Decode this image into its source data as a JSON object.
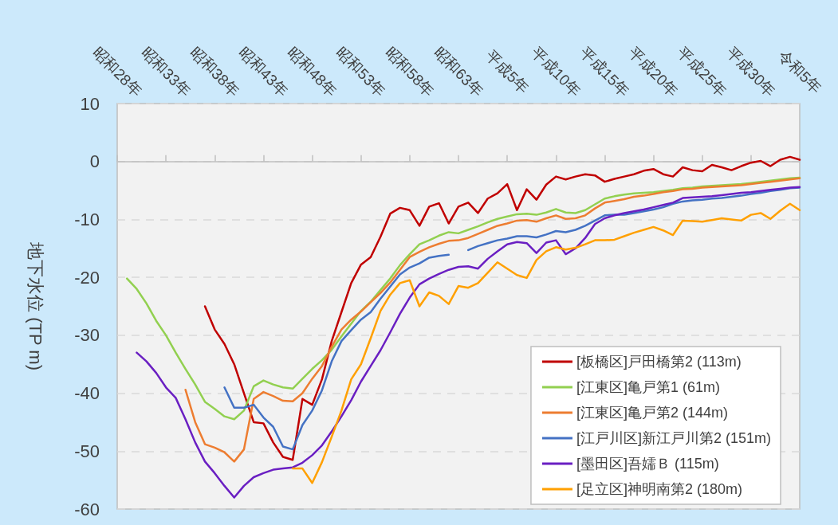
{
  "chart_data": {
    "type": "line",
    "ylabel": "地下水位 (TP m)",
    "ylim": [
      -60,
      10
    ],
    "yticks": [
      -60,
      -50,
      -40,
      -30,
      -20,
      -10,
      0,
      10
    ],
    "categories": [
      "昭和28年",
      null,
      null,
      null,
      null,
      "昭和33年",
      null,
      null,
      null,
      null,
      "昭和38年",
      null,
      null,
      null,
      null,
      "昭和43年",
      null,
      null,
      null,
      null,
      "昭和48年",
      null,
      null,
      null,
      null,
      "昭和53年",
      null,
      null,
      null,
      null,
      "昭和58年",
      null,
      null,
      null,
      null,
      "昭和63年",
      null,
      null,
      null,
      null,
      "平成5年",
      null,
      null,
      null,
      null,
      "平成10年",
      null,
      null,
      null,
      null,
      "平成15年",
      null,
      null,
      null,
      null,
      "平成20年",
      null,
      null,
      null,
      null,
      "平成25年",
      null,
      null,
      null,
      null,
      "平成30年",
      null,
      null,
      null,
      null,
      "令和5年"
    ],
    "grid": "y",
    "legend": "bottom right",
    "marker": "none",
    "line_style": "solid",
    "series": [
      {
        "name": "[板橋区]戸田橋第2 (113m)",
        "color": "#c00000",
        "values": [
          null,
          null,
          null,
          null,
          null,
          null,
          null,
          null,
          null,
          -25,
          -29,
          -31.5,
          -35,
          -40,
          -45,
          -45.2,
          -48.5,
          -51,
          -51.5,
          -41,
          -42,
          -37.6,
          -31,
          -26,
          -21,
          -17.8,
          -16.5,
          -13,
          -9,
          -8,
          -8.4,
          -11.1,
          -7.8,
          -7.2,
          -10.7,
          -7.8,
          -7.1,
          -8.9,
          -6.4,
          -5.5,
          -3.9,
          -8.4,
          -4.8,
          -6.6,
          -4,
          -2.6,
          -3.1,
          -2.6,
          -2.2,
          -2.4,
          -3.5,
          -3,
          -2.6,
          -2.2,
          -1.6,
          -1.3,
          -2.2,
          -2.6,
          -1,
          -1.5,
          -1.7,
          -0.6,
          -1,
          -1.5,
          -0.8,
          -0.2,
          0.1,
          -0.8,
          0.3,
          0.8,
          0.3
        ]
      },
      {
        "name": "[江東区]亀戸第1 (61m)",
        "color": "#92d050",
        "values": [
          null,
          -20.2,
          -22,
          -24.5,
          -27.5,
          -30,
          -33,
          -35.8,
          -38.5,
          -41.5,
          -42.7,
          -44,
          -44.5,
          -43,
          -38.8,
          -37.8,
          -38.5,
          -39,
          -39.2,
          -37.5,
          -35.8,
          -34.3,
          -32.5,
          -30.2,
          -28,
          -25.8,
          -24.2,
          -22.2,
          -20.2,
          -17.9,
          -16,
          -14.3,
          -13.6,
          -12.8,
          -12.2,
          -12.4,
          -11.8,
          -11.2,
          -10.5,
          -9.9,
          -9.5,
          -9.1,
          -9,
          -9.2,
          -8.8,
          -8.2,
          -8.8,
          -8.9,
          -8.4,
          -7.4,
          -6.4,
          -6,
          -5.7,
          -5.5,
          -5.4,
          -5.3,
          -5.1,
          -4.9,
          -4.6,
          -4.5,
          -4.3,
          -4.2,
          -4.1,
          -4,
          -3.9,
          -3.7,
          -3.5,
          -3.3,
          -3.1,
          -2.9,
          -2.8
        ]
      },
      {
        "name": "[江東区]亀戸第2 (144m)",
        "color": "#ed7d31",
        "values": [
          null,
          null,
          null,
          null,
          null,
          null,
          null,
          -39.4,
          -45,
          -48.8,
          -49.4,
          -50.2,
          -51.8,
          -49.7,
          -41,
          -39.8,
          -40.5,
          -41.3,
          -41.4,
          -40,
          -37.5,
          -35.3,
          -32,
          -29,
          -27.3,
          -25.9,
          -24.3,
          -22.7,
          -20.9,
          -18.7,
          -16.5,
          -15.6,
          -14.8,
          -14.2,
          -13.7,
          -13.6,
          -13.2,
          -12.5,
          -11.8,
          -11.1,
          -10.7,
          -10.2,
          -10.1,
          -10.4,
          -9.8,
          -9.3,
          -9.9,
          -9.8,
          -9.3,
          -8.1,
          -7.1,
          -6.8,
          -6.5,
          -6.1,
          -5.9,
          -5.6,
          -5.3,
          -5.1,
          -4.8,
          -4.7,
          -4.5,
          -4.4,
          -4.3,
          -4.2,
          -4.1,
          -3.9,
          -3.7,
          -3.5,
          -3.3,
          -3.1,
          -2.9
        ]
      },
      {
        "name": "[江戸川区]新江戸川第2 (151m)",
        "color": "#4472c4",
        "values": [
          null,
          null,
          null,
          null,
          null,
          null,
          null,
          null,
          null,
          null,
          null,
          -39,
          -42.5,
          -42.5,
          -42,
          -44.2,
          -45.8,
          -49.2,
          -49.7,
          -45.5,
          -43,
          -39.5,
          -34.5,
          -31,
          -29.1,
          -27.3,
          -26,
          -23.7,
          -21.6,
          -19.5,
          -18.3,
          -17.6,
          -16.6,
          -16.3,
          -16.1,
          null,
          -15.3,
          -14.6,
          -14.1,
          -13.6,
          -13.3,
          -12.9,
          -12.9,
          -13.1,
          -12.6,
          -12,
          -12.2,
          -11.8,
          -11.1,
          -10.2,
          -9.3,
          -9.2,
          -9.2,
          -8.9,
          -8.6,
          -8.3,
          -7.9,
          -7.3,
          -6.9,
          -6.7,
          -6.6,
          -6.4,
          -6.3,
          -6.1,
          -5.9,
          -5.6,
          -5.4,
          -5.1,
          -4.9,
          -4.6,
          -4.5
        ]
      },
      {
        "name": "[墨田区]吾嬬Ｂ (115m)",
        "color": "#6a1fc2",
        "values": [
          null,
          null,
          -33,
          -34.5,
          -36.5,
          -39,
          -40.8,
          -44.5,
          -48.5,
          -51.8,
          -53.8,
          -56,
          -58,
          -56,
          -54.5,
          -53.8,
          -53.2,
          -53,
          -52.8,
          -52,
          -50.7,
          -49,
          -46.6,
          -44,
          -41.2,
          -38,
          -35.3,
          -32.6,
          -29.5,
          -26.3,
          -23.5,
          -21.2,
          -20.2,
          -19.4,
          -18.7,
          -18.2,
          -18.1,
          -18.5,
          -16.8,
          -15.5,
          -14.3,
          -13.9,
          -14.1,
          -15.8,
          -14,
          -13.6,
          -16,
          -15,
          -13.2,
          -10.8,
          -9.8,
          -9.3,
          -8.9,
          -8.6,
          -8.3,
          -7.9,
          -7.5,
          -7.1,
          -6.3,
          -6.2,
          -6.1,
          -6,
          -5.8,
          -5.6,
          -5.4,
          -5.3,
          -5.1,
          -4.9,
          -4.7,
          -4.5,
          -4.4
        ]
      },
      {
        "name": "[足立区]神明南第2 (180m)",
        "color": "#ffa000",
        "values": [
          null,
          null,
          null,
          null,
          null,
          null,
          null,
          null,
          null,
          null,
          null,
          null,
          null,
          null,
          null,
          null,
          null,
          null,
          -53,
          -53,
          -55.5,
          -51.9,
          -47.5,
          -43,
          -37.6,
          -35,
          -30.5,
          -25.8,
          -23,
          -21,
          -20.5,
          -25,
          -22.6,
          -23.2,
          -24.6,
          -21.5,
          -21.8,
          -21,
          -19.2,
          -17.4,
          -18.5,
          -19.6,
          -20.1,
          -17,
          -15.5,
          -14.8,
          -15.2,
          -14.9,
          -14.3,
          -13.6,
          -13.6,
          -13.5,
          -12.9,
          -12.3,
          -11.8,
          -11.3,
          -11.9,
          -12.7,
          -10.2,
          -10.3,
          -10.4,
          -10.1,
          -9.8,
          -10,
          -10.2,
          -9.2,
          -8.9,
          -9.9,
          -8.5,
          -7.3,
          -8.4
        ]
      }
    ]
  }
}
